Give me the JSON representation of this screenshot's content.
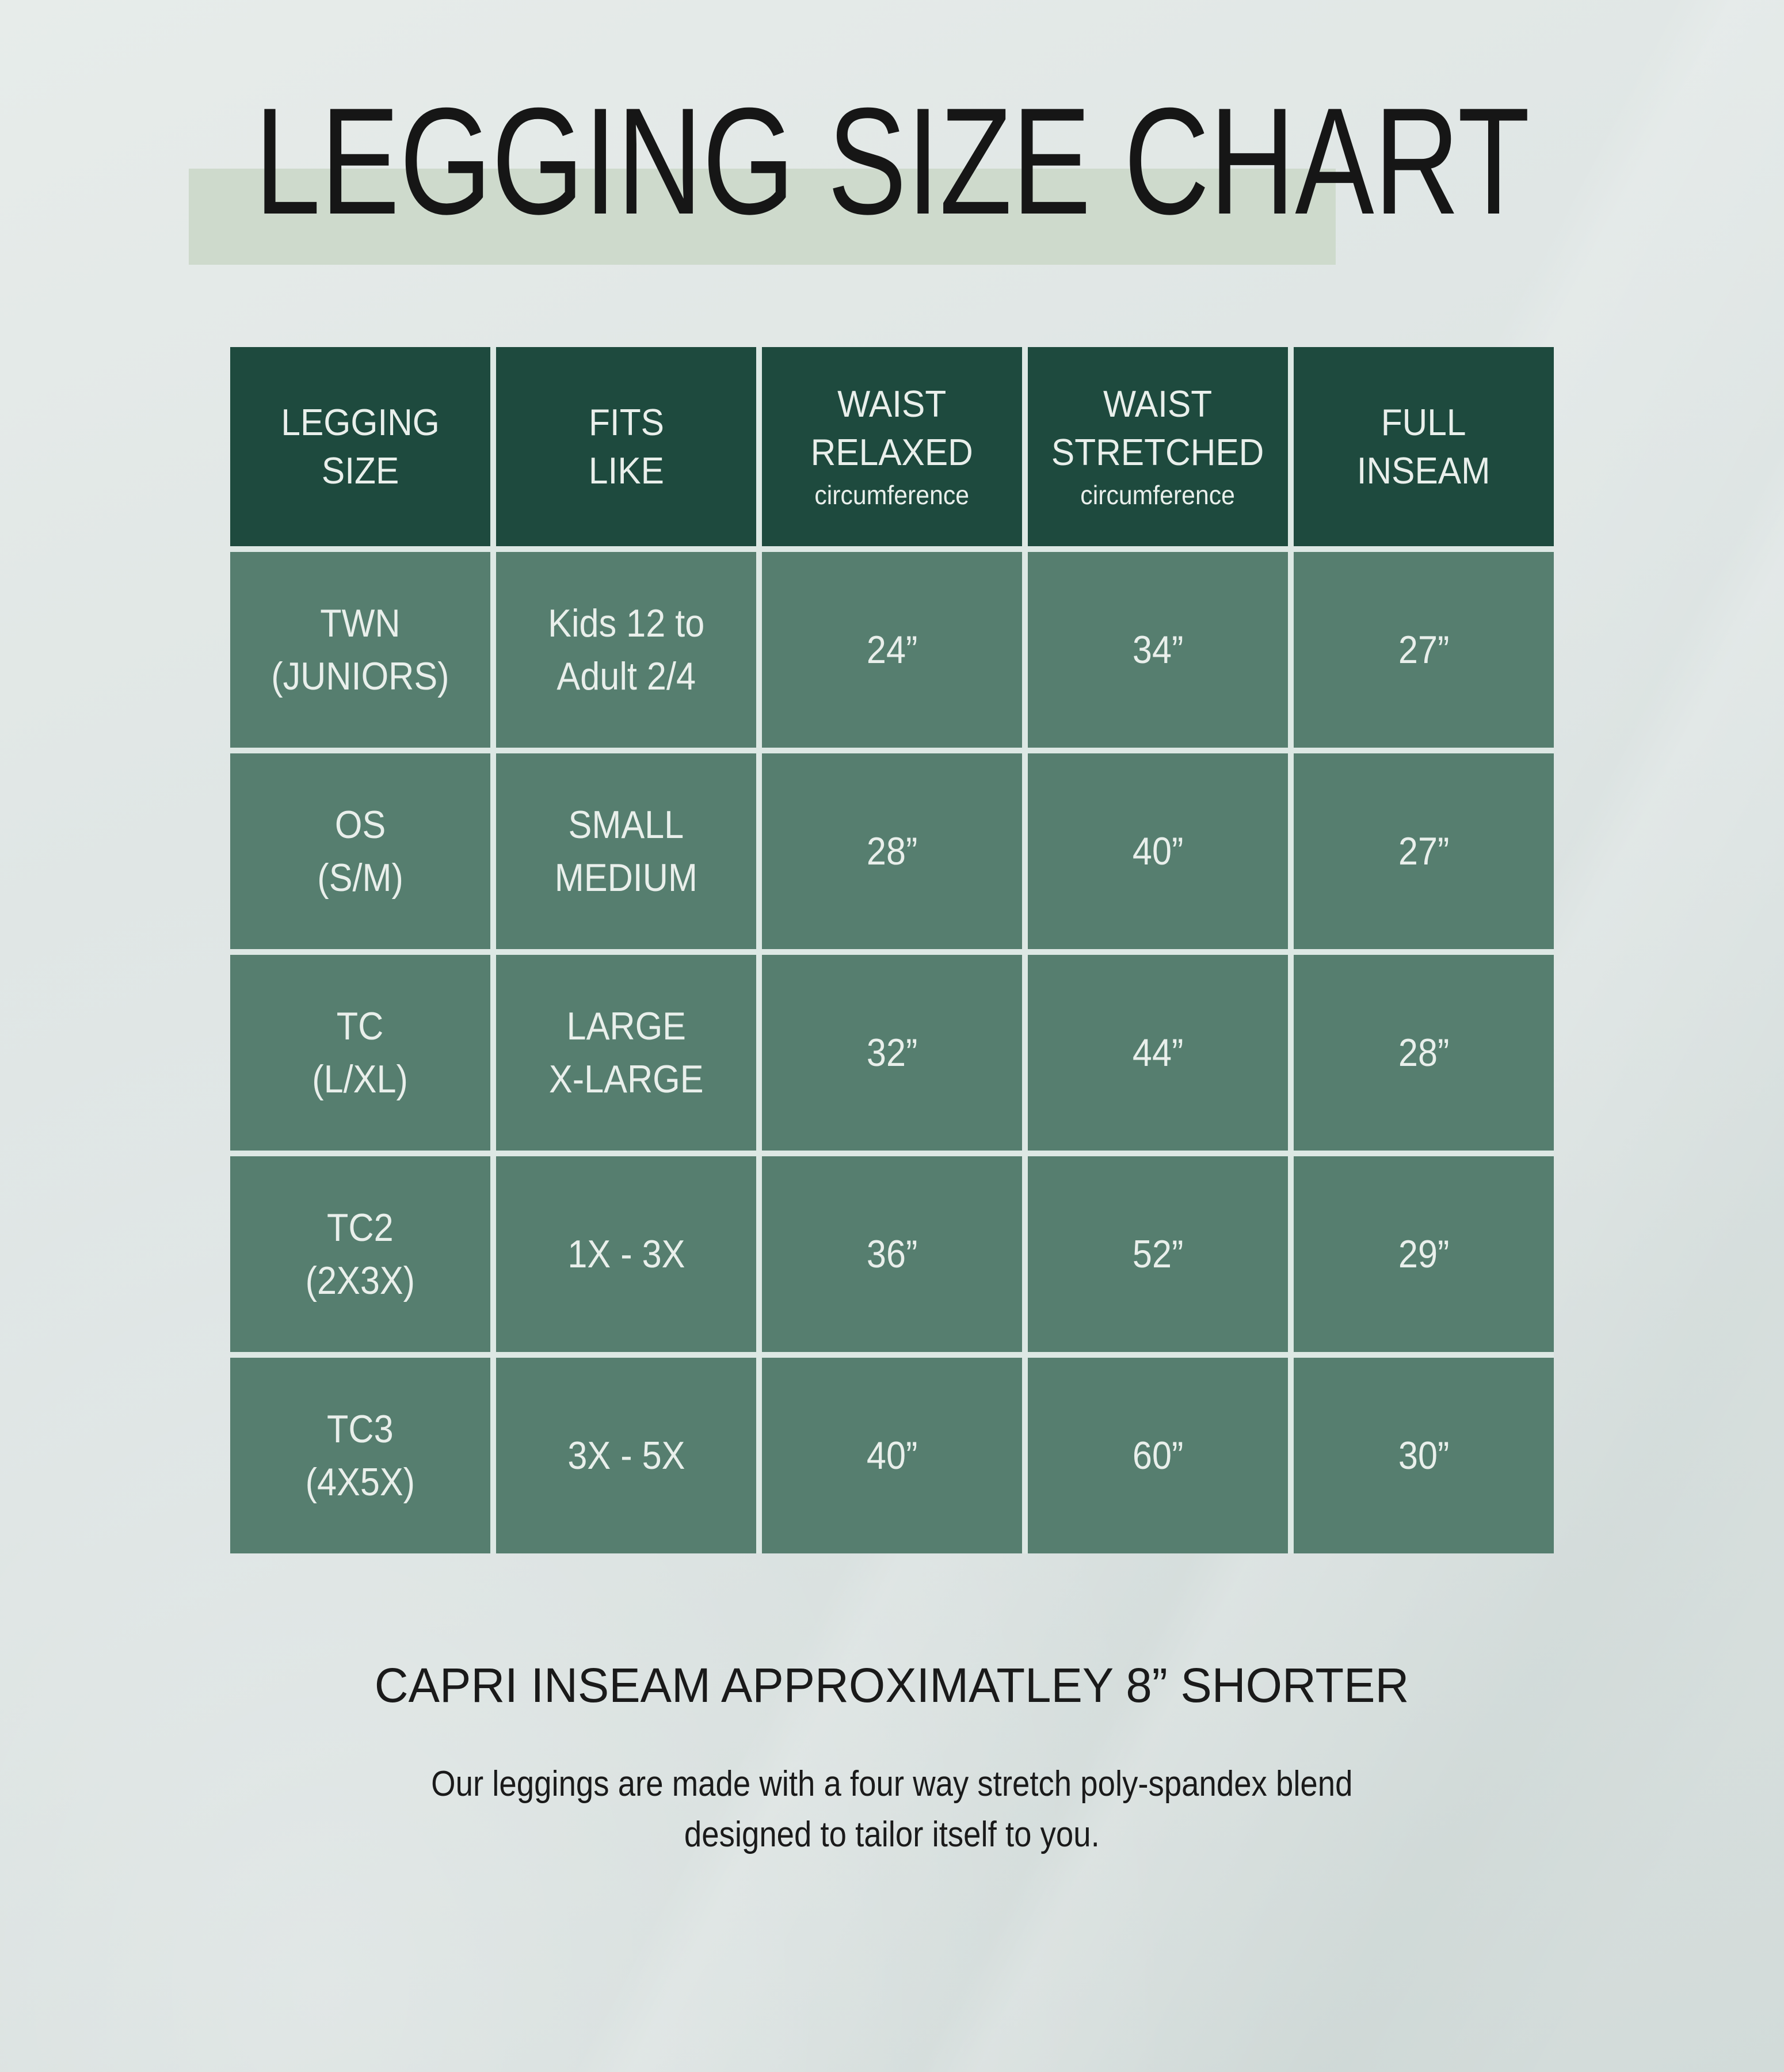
{
  "title": "LEGGING SIZE CHART",
  "table": {
    "headers": [
      {
        "lines": [
          "LEGGING",
          "SIZE"
        ],
        "sub": ""
      },
      {
        "lines": [
          "FITS",
          "LIKE"
        ],
        "sub": ""
      },
      {
        "lines": [
          "WAIST",
          "RELAXED"
        ],
        "sub": "circumference"
      },
      {
        "lines": [
          "WAIST",
          "STRETCHED"
        ],
        "sub": "circumference"
      },
      {
        "lines": [
          "FULL",
          "INSEAM"
        ],
        "sub": ""
      }
    ],
    "rows": [
      {
        "cells": [
          [
            "TWN",
            "(JUNIORS)"
          ],
          [
            "Kids 12 to",
            "Adult 2/4"
          ],
          [
            "24”"
          ],
          [
            "34”"
          ],
          [
            "27”"
          ]
        ]
      },
      {
        "cells": [
          [
            "OS",
            "(S/M)"
          ],
          [
            "SMALL",
            "MEDIUM"
          ],
          [
            "28”"
          ],
          [
            "40”"
          ],
          [
            "27”"
          ]
        ]
      },
      {
        "cells": [
          [
            "TC",
            "(L/XL)"
          ],
          [
            "LARGE",
            "X-LARGE"
          ],
          [
            "32”"
          ],
          [
            "44”"
          ],
          [
            "28”"
          ]
        ]
      },
      {
        "cells": [
          [
            "TC2",
            "(2X3X)"
          ],
          [
            "1X - 3X"
          ],
          [
            "36”"
          ],
          [
            "52”"
          ],
          [
            "29”"
          ]
        ]
      },
      {
        "cells": [
          [
            "TC3",
            "(4X5X)"
          ],
          [
            "3X - 5X"
          ],
          [
            "40”"
          ],
          [
            "60”"
          ],
          [
            "30”"
          ]
        ]
      }
    ]
  },
  "notes": {
    "capri": "CAPRI INSEAM APPROXIMATLEY 8” SHORTER",
    "description": [
      "Our leggings are made with a four way stretch poly-spandex blend",
      "designed to tailor itself to you."
    ]
  },
  "colors": {
    "page_bg_top": "#e7ecea",
    "page_bg_mid": "#dde4e3",
    "page_bg_bottom": "#ccd6d4",
    "title_text": "#161616",
    "title_highlight": "#cedacc",
    "header_bg": "#1e4a3e",
    "cell_bg": "#567e6f",
    "divider": "#dde8e4",
    "cell_text": "#e9efeb",
    "note_text": "#1a1a1a"
  },
  "chart_data": {
    "type": "table",
    "title": "LEGGING SIZE CHART",
    "columns": [
      {
        "label": "LEGGING SIZE"
      },
      {
        "label": "FITS LIKE"
      },
      {
        "label": "WAIST RELAXED",
        "sublabel": "circumference"
      },
      {
        "label": "WAIST STRETCHED",
        "sublabel": "circumference"
      },
      {
        "label": "FULL INSEAM"
      }
    ],
    "rows": [
      [
        "TWN (JUNIORS)",
        "Kids 12 to Adult 2/4",
        "24”",
        "34”",
        "27”"
      ],
      [
        "OS (S/M)",
        "SMALL MEDIUM",
        "28”",
        "40”",
        "27”"
      ],
      [
        "TC (L/XL)",
        "LARGE X-LARGE",
        "32”",
        "44”",
        "28”"
      ],
      [
        "TC2 (2X3X)",
        "1X - 3X",
        "36”",
        "52”",
        "29”"
      ],
      [
        "TC3 (4X5X)",
        "3X - 5X",
        "40”",
        "60”",
        "30”"
      ]
    ],
    "annotations": [
      "CAPRI INSEAM APPROXIMATLEY 8” SHORTER",
      "Our leggings are made with a four way stretch poly-spandex blend designed to tailor itself to you."
    ]
  }
}
